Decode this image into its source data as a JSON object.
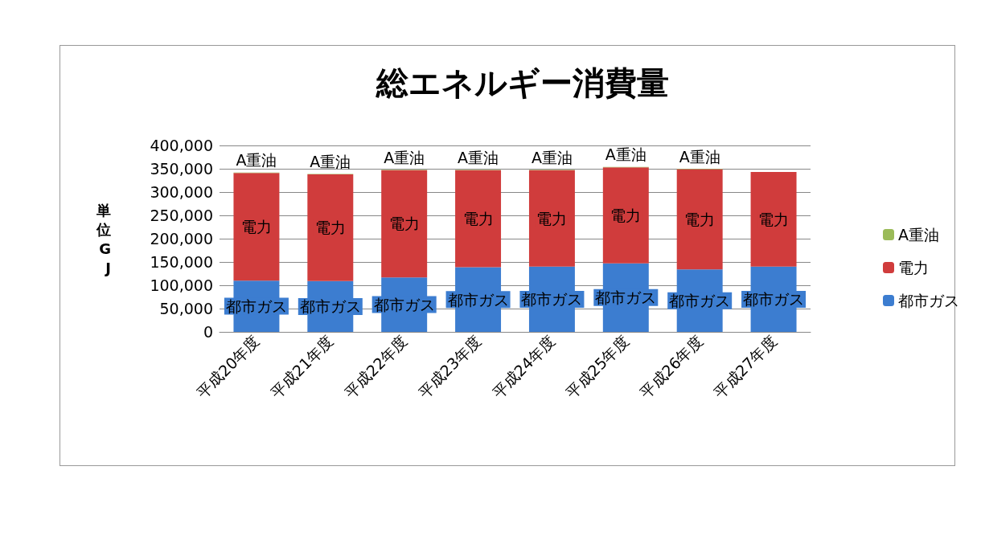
{
  "chart_data": {
    "type": "bar",
    "stacked": true,
    "title": "総エネルギー消費量",
    "ylabel": "単位GJ",
    "categories": [
      "平成20年度",
      "平成21年度",
      "平成22年度",
      "平成23年度",
      "平成24年度",
      "平成25年度",
      "平成26年度",
      "平成27年度"
    ],
    "series": [
      {
        "name": "都市ガス",
        "color": "#3c7dd0",
        "values": [
          110000,
          109000,
          117000,
          139000,
          140000,
          147000,
          134000,
          140000
        ],
        "value_labels": [
          "都市ガス",
          "都市ガス",
          "都市ガス",
          "都市ガス",
          "都市ガス",
          "都市ガス",
          "都市ガス",
          "都市ガス"
        ]
      },
      {
        "name": "電力",
        "color": "#d03c3c",
        "values": [
          231000,
          229000,
          230000,
          208000,
          207000,
          206000,
          215000,
          203000
        ],
        "value_labels": [
          "電力",
          "電力",
          "電力",
          "電力",
          "電力",
          "電力",
          "電力",
          "電力"
        ]
      },
      {
        "name": "A重油",
        "color": "#9bbb59",
        "values": [
          1000,
          1000,
          1000,
          1000,
          1000,
          1000,
          1000,
          null
        ],
        "value_labels": [
          "A重油",
          "A重油",
          "A重油",
          "A重油",
          "A重油",
          "A重油",
          "A重油",
          null
        ]
      }
    ],
    "ylim": [
      0,
      400000
    ],
    "yticks": [
      0,
      {
        "value": 50000,
        "label": "50,000"
      },
      {
        "value": 100000,
        "label": "100,000"
      },
      {
        "value": 150000,
        "label": "150,000"
      },
      {
        "value": 200000,
        "label": "200,000"
      },
      {
        "value": 250000,
        "label": "250,000"
      },
      {
        "value": 300000,
        "label": "300,000"
      },
      {
        "value": 350000,
        "label": "350,000"
      },
      {
        "value": 400000,
        "label": "400,000"
      }
    ],
    "grid": "y",
    "legend": "right"
  }
}
